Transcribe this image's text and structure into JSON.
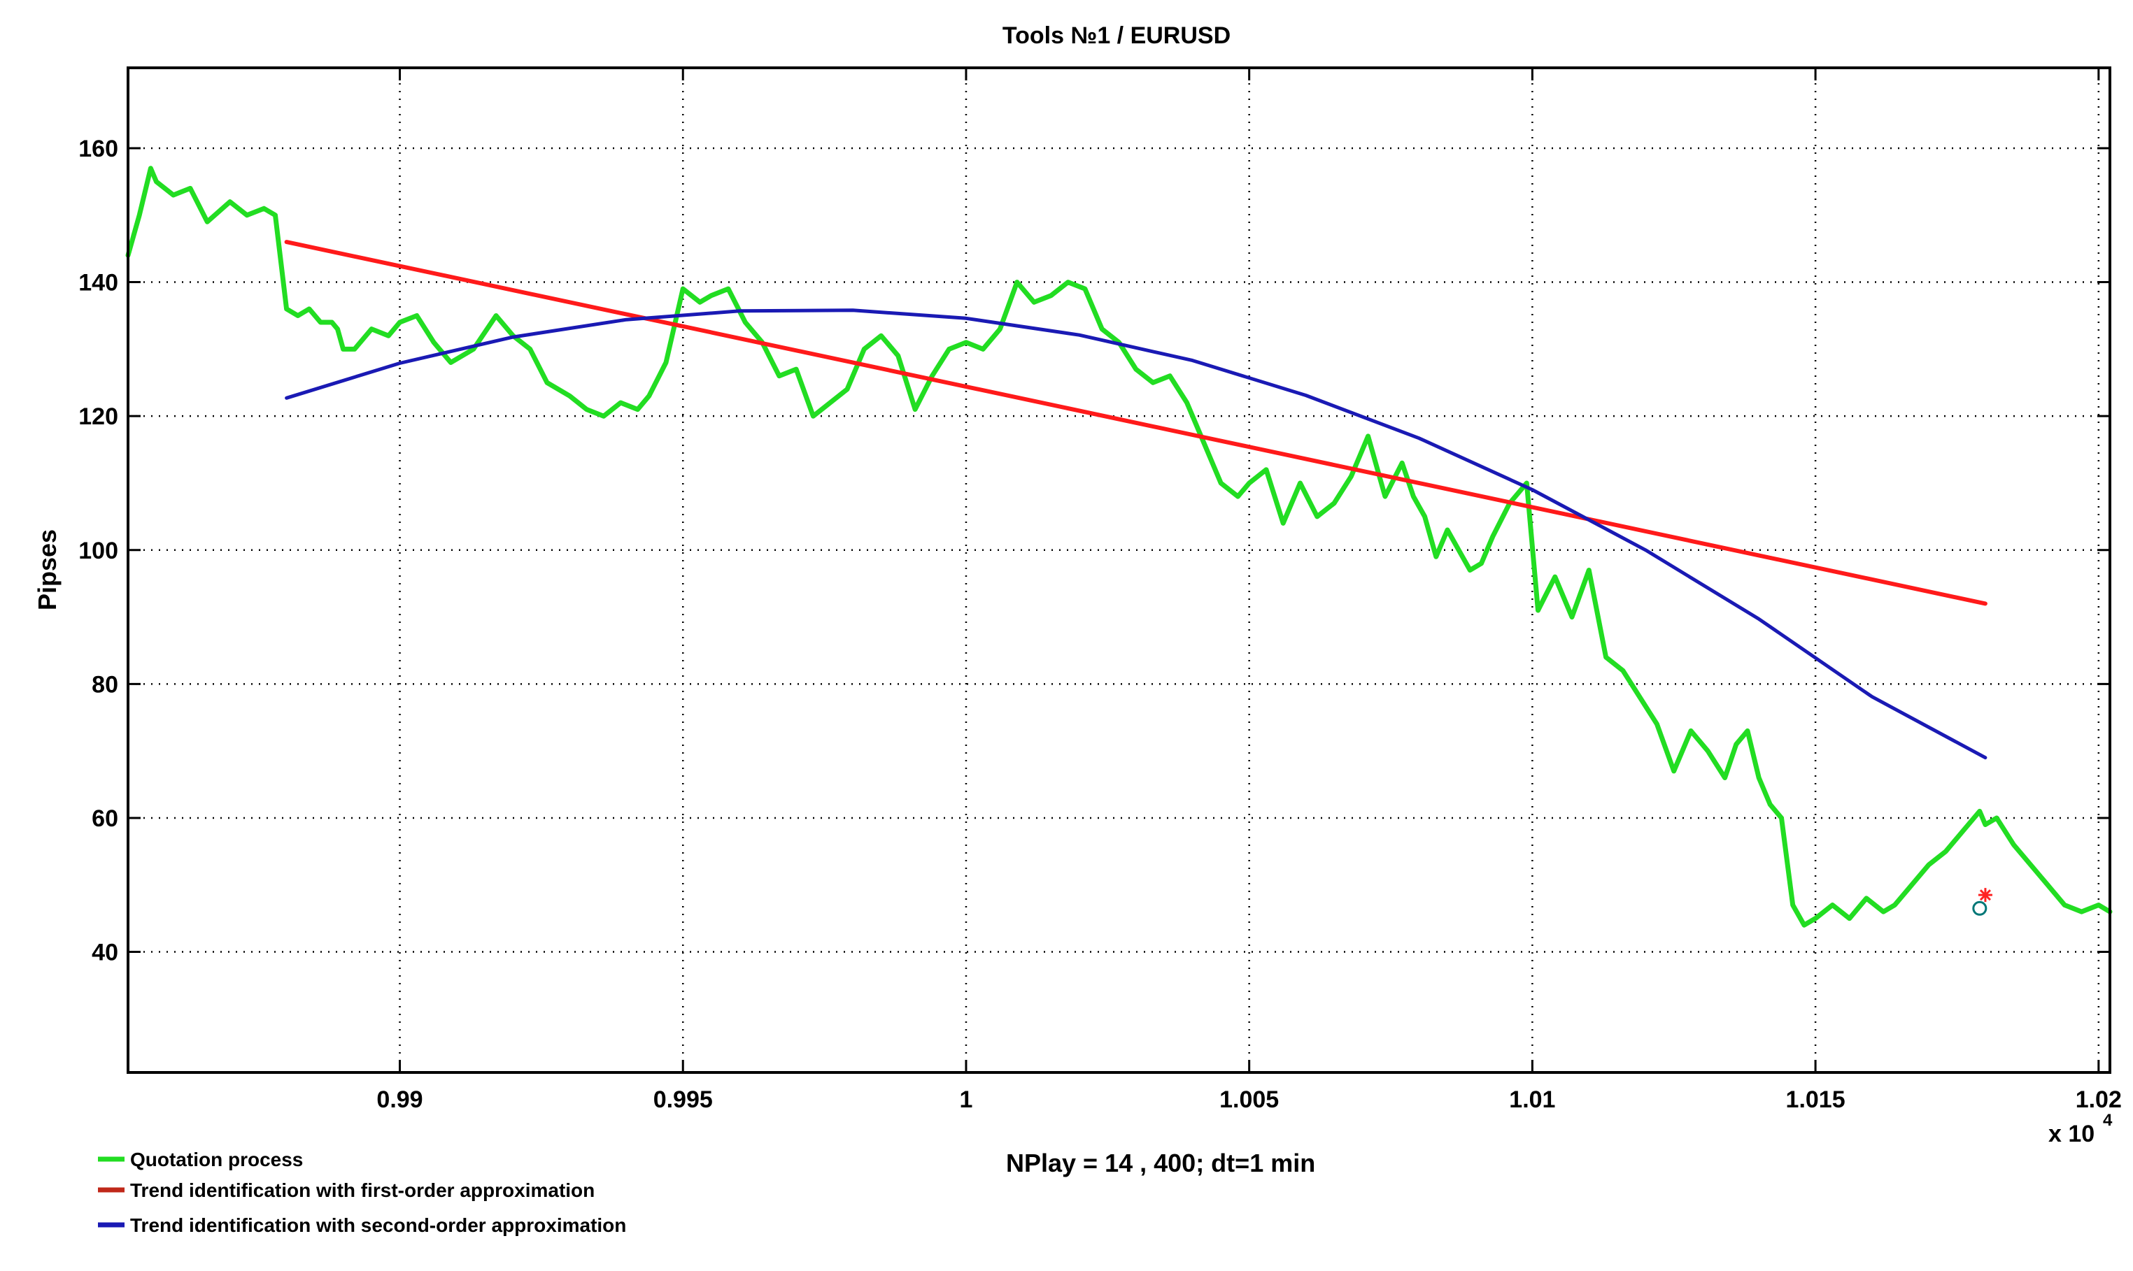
{
  "chart_data": {
    "type": "line",
    "title": "Tools  №1 / EURUSD",
    "ylabel": "Pipses",
    "xlabel": "",
    "x_exponent_label": "x 10",
    "x_exponent_power": "4",
    "xlim": [
      9852,
      10202
    ],
    "ylim": [
      22,
      172
    ],
    "x_ticks": [
      9900,
      9950,
      10000,
      10050,
      10100,
      10150,
      10200
    ],
    "x_tick_labels": [
      "0.99",
      "0.995",
      "1",
      "1.005",
      "1.01",
      "1.015",
      "1.02"
    ],
    "y_ticks": [
      40,
      60,
      80,
      100,
      120,
      140,
      160
    ],
    "y_tick_labels": [
      "40",
      "60",
      "80",
      "100",
      "120",
      "140",
      "160"
    ],
    "grid": true,
    "legend_position": "bottom-left",
    "annotation": "NPlay = 14 , 400;  dt=1 min",
    "series": [
      {
        "name": "Quotation process",
        "color": "#22dd22",
        "x": [
          9852,
          9854,
          9856,
          9857,
          9860,
          9863,
          9866,
          9870,
          9873,
          9876,
          9878,
          9880,
          9882,
          9884,
          9886,
          9888,
          9889,
          9890,
          9892,
          9895,
          9898,
          9900,
          9903,
          9906,
          9909,
          9913,
          9917,
          9920,
          9923,
          9926,
          9930,
          9933,
          9936,
          9939,
          9942,
          9944,
          9947,
          9950,
          9953,
          9955,
          9958,
          9961,
          9964,
          9967,
          9970,
          9973,
          9976,
          9979,
          9982,
          9985,
          9988,
          9991,
          9994,
          9997,
          10000,
          10003,
          10006,
          10009,
          10012,
          10015,
          10018,
          10021,
          10024,
          10027,
          10030,
          10033,
          10036,
          10039,
          10042,
          10045,
          10048,
          10050,
          10053,
          10056,
          10059,
          10062,
          10065,
          10068,
          10071,
          10074,
          10077,
          10079,
          10081,
          10083,
          10085,
          10087,
          10089,
          10091,
          10093,
          10096,
          10099,
          10101,
          10104,
          10107,
          10110,
          10113,
          10116,
          10119,
          10122,
          10125,
          10128,
          10131,
          10134,
          10136,
          10138,
          10140,
          10142,
          10144,
          10146,
          10148,
          10150,
          10153,
          10156,
          10159,
          10162,
          10164,
          10167,
          10170,
          10173,
          10176,
          10179,
          10180,
          10182,
          10185,
          10188,
          10191,
          10194,
          10197,
          10200,
          10202
        ],
        "y": [
          144,
          150,
          157,
          155,
          153,
          154,
          149,
          152,
          150,
          151,
          150,
          136,
          135,
          136,
          134,
          134,
          133,
          130,
          130,
          133,
          132,
          134,
          135,
          131,
          128,
          130,
          135,
          132,
          130,
          125,
          123,
          121,
          120,
          122,
          121,
          123,
          128,
          139,
          137,
          138,
          139,
          134,
          131,
          126,
          127,
          120,
          122,
          124,
          130,
          132,
          129,
          121,
          126,
          130,
          131,
          130,
          133,
          140,
          137,
          138,
          140,
          139,
          133,
          131,
          127,
          125,
          126,
          122,
          116,
          110,
          108,
          110,
          112,
          104,
          110,
          105,
          107,
          111,
          117,
          108,
          113,
          108,
          105,
          99,
          103,
          100,
          97,
          98,
          102,
          107,
          110,
          91,
          96,
          90,
          97,
          84,
          82,
          78,
          74,
          67,
          73,
          70,
          66,
          71,
          73,
          66,
          62,
          60,
          47,
          44,
          45,
          47,
          45,
          48,
          46,
          47,
          50,
          53,
          55,
          58,
          61,
          59,
          60,
          56,
          53,
          50,
          47,
          46,
          47,
          46
        ]
      },
      {
        "name": "Trend identification with first-order approximation",
        "color": "#ff1a1a",
        "x": [
          9880,
          10180
        ],
        "y": [
          146,
          92
        ]
      },
      {
        "name": "Trend identification with second-order approximation",
        "color": "#1a1ab4",
        "x": [
          9880,
          9900,
          9920,
          9940,
          9960,
          9980,
          10000,
          10020,
          10040,
          10060,
          10080,
          10100,
          10120,
          10140,
          10160,
          10180
        ],
        "y": [
          122.7,
          127.9,
          131.8,
          134.4,
          135.7,
          135.8,
          134.6,
          132.1,
          128.3,
          123.1,
          116.7,
          109.0,
          100.0,
          89.7,
          78.1,
          69.0
        ]
      }
    ],
    "markers": [
      {
        "name": "last-value-star",
        "x": 10180,
        "y": 48.5,
        "color": "#ff2222",
        "symbol": "star"
      },
      {
        "name": "last-value-circle",
        "x": 10179,
        "y": 46.5,
        "color": "#007777",
        "symbol": "circle"
      }
    ]
  }
}
